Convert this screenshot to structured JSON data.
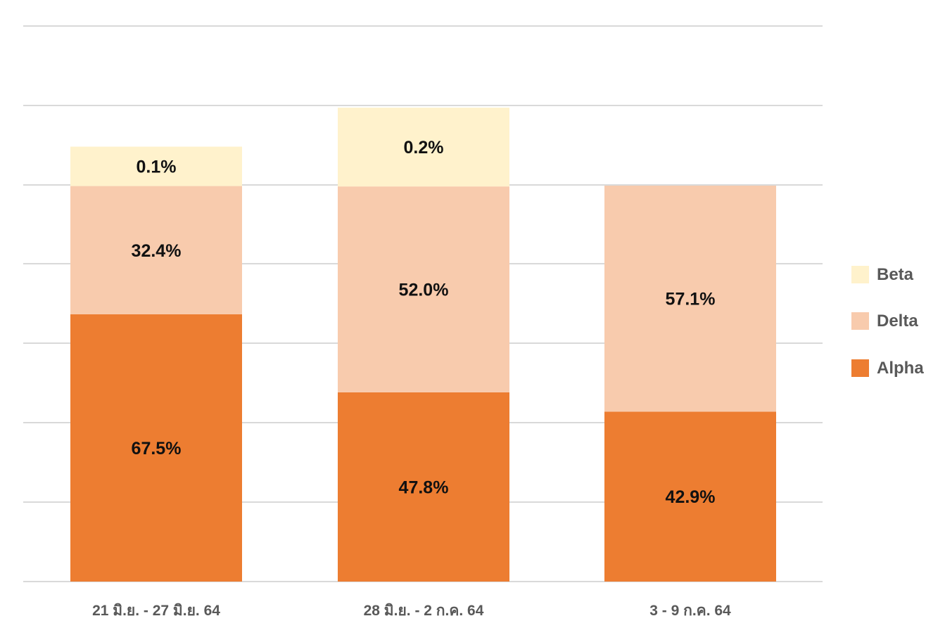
{
  "chart_data": {
    "type": "bar",
    "stacked": true,
    "categories": [
      "21 มิ.ย. - 27 มิ.ย. 64",
      "28 มิ.ย. - 2 ก.ค. 64",
      "3 - 9 ก.ค. 64"
    ],
    "series": [
      {
        "name": "Alpha",
        "color": "#ed7d31",
        "values": [
          67.5,
          47.8,
          42.9
        ],
        "labels": [
          "67.5%",
          "47.8%",
          "42.9%"
        ]
      },
      {
        "name": "Delta",
        "color": "#f8cbad",
        "values": [
          32.4,
          52.0,
          57.1
        ],
        "labels": [
          "32.4%",
          "52.0%",
          "57.1%"
        ]
      },
      {
        "name": "Beta",
        "color": "#fff2cc",
        "values": [
          0.1,
          0.2,
          0.0
        ],
        "labels": [
          "0.1%",
          "0.2%",
          ""
        ]
      }
    ],
    "title": "",
    "xlabel": "",
    "ylabel": "",
    "legend_position": "right",
    "legend_order": [
      "Beta",
      "Delta",
      "Alpha"
    ],
    "grid": true,
    "grid_color": "#d9d9d9"
  }
}
